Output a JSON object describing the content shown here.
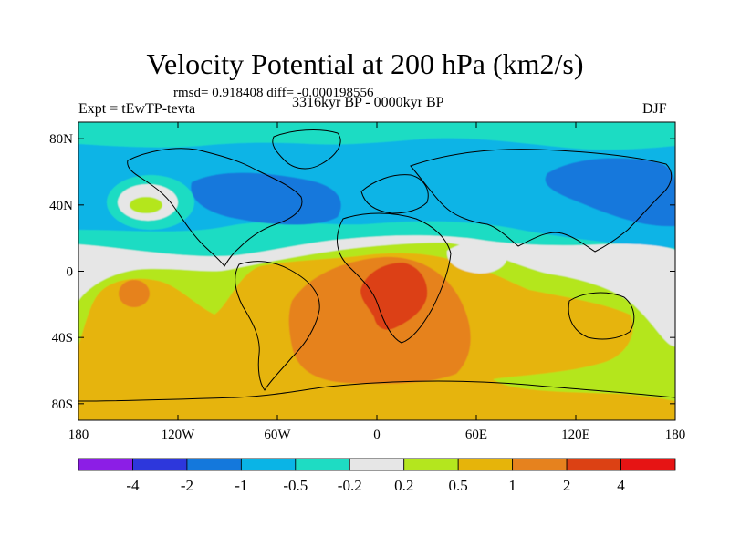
{
  "header": {
    "title": "Velocity Potential at 200 hPa (km2/s)",
    "stats": "rmsd= 0.918408 diff= -0.000198556",
    "experiment": "Expt = tEwTP-tevta",
    "period": "3316kyr BP - 0000kyr BP",
    "season": "DJF"
  },
  "chart_data": {
    "type": "heatmap",
    "title": "Velocity Potential at 200 hPa (km2/s)",
    "xlabel": "",
    "ylabel": "",
    "xlim": [
      -180,
      180
    ],
    "ylim": [
      -90,
      90
    ],
    "x_ticks": [
      {
        "value": -180,
        "label": "180"
      },
      {
        "value": -120,
        "label": "120W"
      },
      {
        "value": -60,
        "label": "60W"
      },
      {
        "value": 0,
        "label": "0"
      },
      {
        "value": 60,
        "label": "60E"
      },
      {
        "value": 120,
        "label": "120E"
      },
      {
        "value": 180,
        "label": "180"
      }
    ],
    "y_ticks": [
      {
        "value": 80,
        "label": "80N"
      },
      {
        "value": 40,
        "label": "40N"
      },
      {
        "value": 0,
        "label": "0"
      },
      {
        "value": -40,
        "label": "40S"
      },
      {
        "value": -80,
        "label": "80S"
      }
    ],
    "colorbar": {
      "colors": [
        "#8c1ee6",
        "#2d37dc",
        "#1478dc",
        "#0ab4e6",
        "#1edcc3",
        "#e6e6e6",
        "#b4e61e",
        "#e6b40a",
        "#e6821e",
        "#dc4114",
        "#e61414"
      ],
      "labels": [
        "-4",
        "-2",
        "-1",
        "-0.5",
        "-0.2",
        "0.2",
        "0.5",
        "1",
        "2",
        "4"
      ]
    }
  }
}
